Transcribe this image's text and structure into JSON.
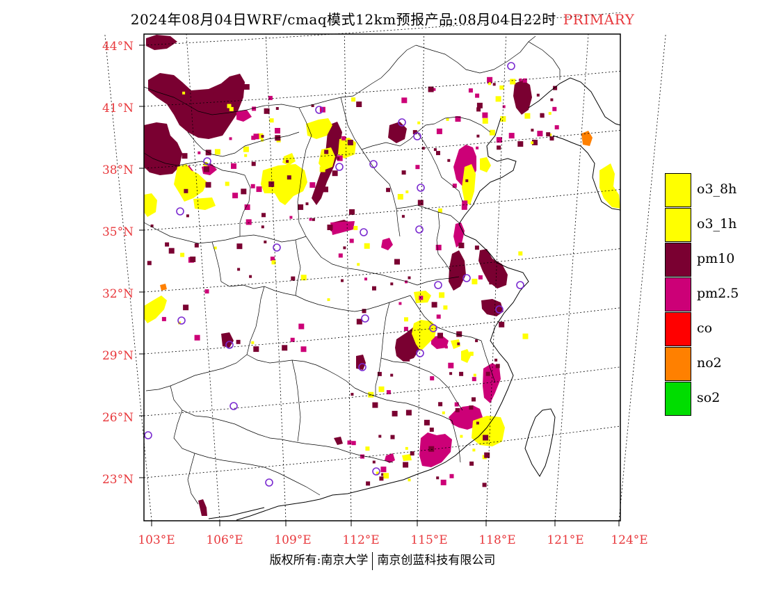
{
  "title": {
    "main": "2024年08月04日WRF/cmaq模式12km预报产品:08月04日22时",
    "tag": "PRIMARY"
  },
  "axes": {
    "lat_labels": [
      "44°N",
      "41°N",
      "38°N",
      "35°N",
      "32°N",
      "29°N",
      "26°N",
      "23°N"
    ],
    "lon_labels": [
      "103°E",
      "106°E",
      "109°E",
      "112°E",
      "115°E",
      "118°E",
      "121°E",
      "124°E"
    ]
  },
  "legend": [
    {
      "label": "o3_8h",
      "color": "#ffff00"
    },
    {
      "label": "o3_1h",
      "color": "#ffff00"
    },
    {
      "label": "pm10",
      "color": "#7a0031"
    },
    {
      "label": "pm2.5",
      "color": "#cc0077"
    },
    {
      "label": "co",
      "color": "#ff0000"
    },
    {
      "label": "no2",
      "color": "#ff8000"
    },
    {
      "label": "so2",
      "color": "#00dd00"
    }
  ],
  "colors": {
    "pm10": "#7a0031",
    "pm25": "#cc0077",
    "o3": "#ffff00",
    "no2": "#ff8000",
    "station": "#7a2ad0",
    "tick_label": "#e8383c"
  },
  "copyright": {
    "left": "版权所有:南京大学",
    "right": "南京创蓝科技有限公司"
  }
}
